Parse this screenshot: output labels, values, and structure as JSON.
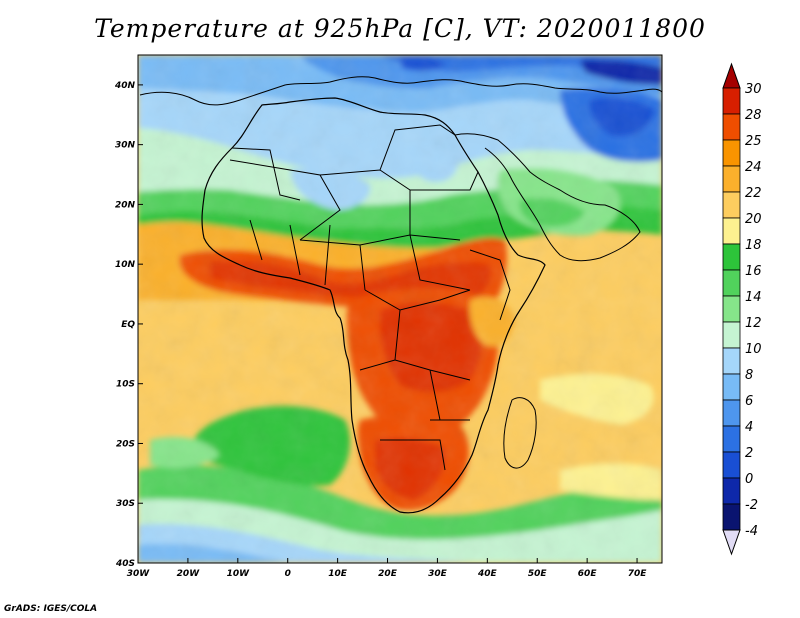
{
  "title": "Temperature at 925hPa [C], VT: 2020011800",
  "credit": "GrADS: IGES/COLA",
  "map": {
    "lon_range": [
      -30,
      75
    ],
    "lat_range": [
      -40,
      45
    ],
    "lon_ticks": [
      {
        "v": -30,
        "label": "30W"
      },
      {
        "v": -20,
        "label": "20W"
      },
      {
        "v": -10,
        "label": "10W"
      },
      {
        "v": 0,
        "label": "0"
      },
      {
        "v": 10,
        "label": "10E"
      },
      {
        "v": 20,
        "label": "20E"
      },
      {
        "v": 30,
        "label": "30E"
      },
      {
        "v": 40,
        "label": "40E"
      },
      {
        "v": 50,
        "label": "50E"
      },
      {
        "v": 60,
        "label": "60E"
      },
      {
        "v": 70,
        "label": "70E"
      }
    ],
    "lat_ticks": [
      {
        "v": 40,
        "label": "40N"
      },
      {
        "v": 30,
        "label": "30N"
      },
      {
        "v": 20,
        "label": "20N"
      },
      {
        "v": 10,
        "label": "10N"
      },
      {
        "v": 0,
        "label": "EQ"
      },
      {
        "v": -10,
        "label": "10S"
      },
      {
        "v": -20,
        "label": "20S"
      },
      {
        "v": -30,
        "label": "30S"
      },
      {
        "v": -40,
        "label": "40S"
      }
    ],
    "region": "Africa",
    "field_regions": [
      {
        "name": "north-africa-cool",
        "lat": [
          20,
          35
        ],
        "temp_c": 10
      },
      {
        "name": "mediterranean-europe",
        "lat": [
          35,
          45
        ],
        "temp_c": 6
      },
      {
        "name": "turkey-iran-cold",
        "lat": [
          30,
          45
        ],
        "temp_c": 0
      },
      {
        "name": "sahel-hot-belt",
        "lat": [
          5,
          15
        ],
        "temp_c": 26
      },
      {
        "name": "central-africa-hot",
        "lat": [
          -15,
          5
        ],
        "temp_c": 27
      },
      {
        "name": "southern-africa-hot",
        "lat": [
          -30,
          -15
        ],
        "temp_c": 28
      },
      {
        "name": "south-atlantic-green",
        "lat": [
          -25,
          -12
        ],
        "temp_c": 16
      },
      {
        "name": "southern-ocean-cool",
        "lat": [
          -40,
          -30
        ],
        "temp_c": 10
      }
    ]
  },
  "colorbar": {
    "levels": [
      "30",
      "28",
      "25",
      "24",
      "22",
      "20",
      "18",
      "16",
      "14",
      "12",
      "10",
      "8",
      "6",
      "4",
      "2",
      "0",
      "-2",
      "-4"
    ],
    "top_arrow_color": "#a50000",
    "bottom_arrow_color": "#e1dcf5",
    "colors": [
      "#d71f00",
      "#ef4e00",
      "#f99400",
      "#fbb02c",
      "#fdcd5f",
      "#fdf190",
      "#2dc43a",
      "#51d25c",
      "#86e58a",
      "#c5f4d2",
      "#a5d6fa",
      "#78bbf6",
      "#4e96ee",
      "#2c71e3",
      "#194fd4",
      "#0e28aa",
      "#0a1470"
    ]
  }
}
